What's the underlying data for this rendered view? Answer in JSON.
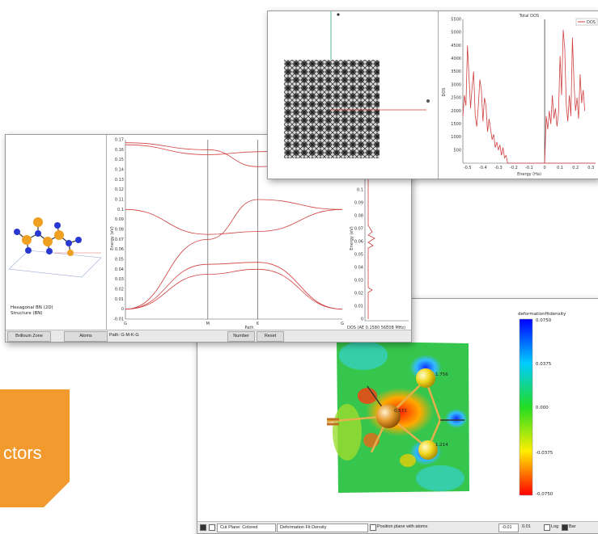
{
  "badge": {
    "text": "ctors"
  },
  "dos_window": {
    "title": "Total DOS",
    "legend": "DOS",
    "xlabel": "Energy (Ha)",
    "ylabel": "DOS",
    "yticks": [
      "500",
      "1000",
      "1500",
      "2000",
      "2500",
      "3000",
      "3500",
      "4000",
      "4500",
      "5000",
      "5500"
    ],
    "xticks": [
      "-0.5",
      "-0.4",
      "-0.3",
      "-0.2",
      "-0.1",
      "0",
      "0.1",
      "0.2",
      "0.3"
    ]
  },
  "band_window": {
    "ylabel": "Energy (eV)",
    "xlabel": "Path",
    "yticks": [
      "-0.01",
      "0",
      "0.01",
      "0.02",
      "0.03",
      "0.04",
      "0.05",
      "0.06",
      "0.07",
      "0.08",
      "0.09",
      "0.1",
      "0.11",
      "0.12",
      "0.13",
      "0.14",
      "0.15",
      "0.16",
      "0.17"
    ],
    "kpoints": [
      "G",
      "M",
      "K",
      "G"
    ],
    "structure_label": "Hexagonal BN (2D)",
    "structure_sublabel": "Structure (BN)",
    "dos_ylabel": "Energy (eV)",
    "dos_yticks": [
      "0",
      "0.01",
      "0.02",
      "0.03",
      "0.04",
      "0.05",
      "0.06",
      "0.07",
      "0.08",
      "0.09",
      "0.1",
      "0.11",
      "0.12",
      "0.13"
    ],
    "dos_bottom": "DOS (AE 0.1580 56E0B MHz)",
    "status": {
      "tab1": "Brillouin Zone",
      "tab2": "Atoms",
      "path": "Path: G-M-K-G",
      "number": "Number",
      "reset": "Reset"
    }
  },
  "density_window": {
    "colorbar_title": "deformationfitdensity",
    "colorbar_ticks": [
      "0.0750",
      "0.0375",
      "0.000",
      "-0.0375",
      "-0.0750"
    ],
    "atom_labels": [
      "1.756",
      "0.572",
      "1.214"
    ],
    "status": {
      "cut_plane": "Cut Plane: Colored",
      "plane_type": "Deformation Fit Density",
      "position": "Position plane with atoms",
      "min": "-0.01",
      "max": "0.01",
      "log": "Log",
      "bar": "Bar"
    }
  },
  "chart_data": [
    {
      "type": "line",
      "title": "Total DOS",
      "xlabel": "Energy (Ha)",
      "ylabel": "DOS",
      "xlim": [
        -0.53,
        0.33
      ],
      "ylim": [
        0,
        5500
      ],
      "legend": "top-right",
      "series": [
        {
          "name": "DOS",
          "x": [
            -0.53,
            -0.52,
            -0.51,
            -0.5,
            -0.49,
            -0.48,
            -0.47,
            -0.46,
            -0.45,
            -0.44,
            -0.43,
            -0.42,
            -0.41,
            -0.4,
            -0.39,
            -0.38,
            -0.37,
            -0.36,
            -0.35,
            -0.34,
            -0.33,
            -0.32,
            -0.31,
            -0.3,
            -0.29,
            -0.28,
            -0.27,
            -0.26,
            -0.25,
            -0.24,
            -0.23,
            -0.22,
            -0.21,
            -0.2,
            -0.19,
            -0.18,
            -0.17,
            -0.16,
            -0.15,
            -0.14,
            -0.13,
            -0.12,
            -0.11,
            -0.1,
            -0.09,
            -0.08,
            -0.07,
            -0.06,
            -0.05,
            -0.04,
            -0.03,
            -0.02,
            -0.01,
            0,
            0.01,
            0.02,
            0.03,
            0.04,
            0.05,
            0.06,
            0.07,
            0.08,
            0.09,
            0.1,
            0.11,
            0.12,
            0.13,
            0.14,
            0.15,
            0.16,
            0.17,
            0.18,
            0.19,
            0.2,
            0.21,
            0.22,
            0.23,
            0.24,
            0.25,
            0.26,
            0.27,
            0.28,
            0.29,
            0.3,
            0.31,
            0.32,
            0.33
          ],
          "y": [
            1800,
            2600,
            2200,
            4500,
            3300,
            2100,
            2900,
            3500,
            1800,
            1400,
            2200,
            3200,
            2800,
            1600,
            2500,
            2200,
            1200,
            1700,
            1300,
            900,
            1100,
            600,
            800,
            500,
            700,
            300,
            600,
            200,
            300,
            0,
            0,
            0,
            0,
            0,
            0,
            0,
            0,
            0,
            0,
            0,
            0,
            0,
            0,
            0,
            0,
            0,
            0,
            0,
            0,
            0,
            0,
            0,
            0,
            0,
            0,
            0,
            0,
            0,
            0,
            0,
            0,
            0,
            0,
            0,
            0,
            0,
            0,
            0,
            0,
            0,
            0,
            0,
            0,
            0,
            0,
            0,
            0,
            0,
            0,
            0,
            0,
            0,
            0,
            0,
            0,
            0,
            0
          ]
        }
      ]
    },
    {
      "type": "line",
      "xlabel": "Path",
      "ylabel": "Energy (eV)",
      "ylim": [
        -0.01,
        0.17
      ],
      "categories": [
        "G",
        "M",
        "K",
        "G"
      ],
      "series": [
        {
          "x": [
            0,
            1,
            2,
            3
          ],
          "y": [
            0.0,
            0.07,
            0.11,
            0.1
          ]
        },
        {
          "x": [
            0,
            1,
            2,
            3
          ],
          "y": [
            0.0,
            0.045,
            0.047,
            0.0
          ]
        },
        {
          "x": [
            0,
            1,
            2,
            3
          ],
          "y": [
            0.0,
            0.035,
            0.04,
            0.0
          ]
        },
        {
          "x": [
            0,
            1,
            2,
            3
          ],
          "y": [
            0.1,
            0.075,
            0.078,
            0.1
          ]
        },
        {
          "x": [
            0,
            1,
            2,
            3
          ],
          "y": [
            0.165,
            0.155,
            0.158,
            0.16
          ]
        },
        {
          "x": [
            0,
            1,
            2,
            3
          ],
          "y": [
            0.167,
            0.16,
            0.143,
            0.155
          ]
        }
      ]
    }
  ]
}
